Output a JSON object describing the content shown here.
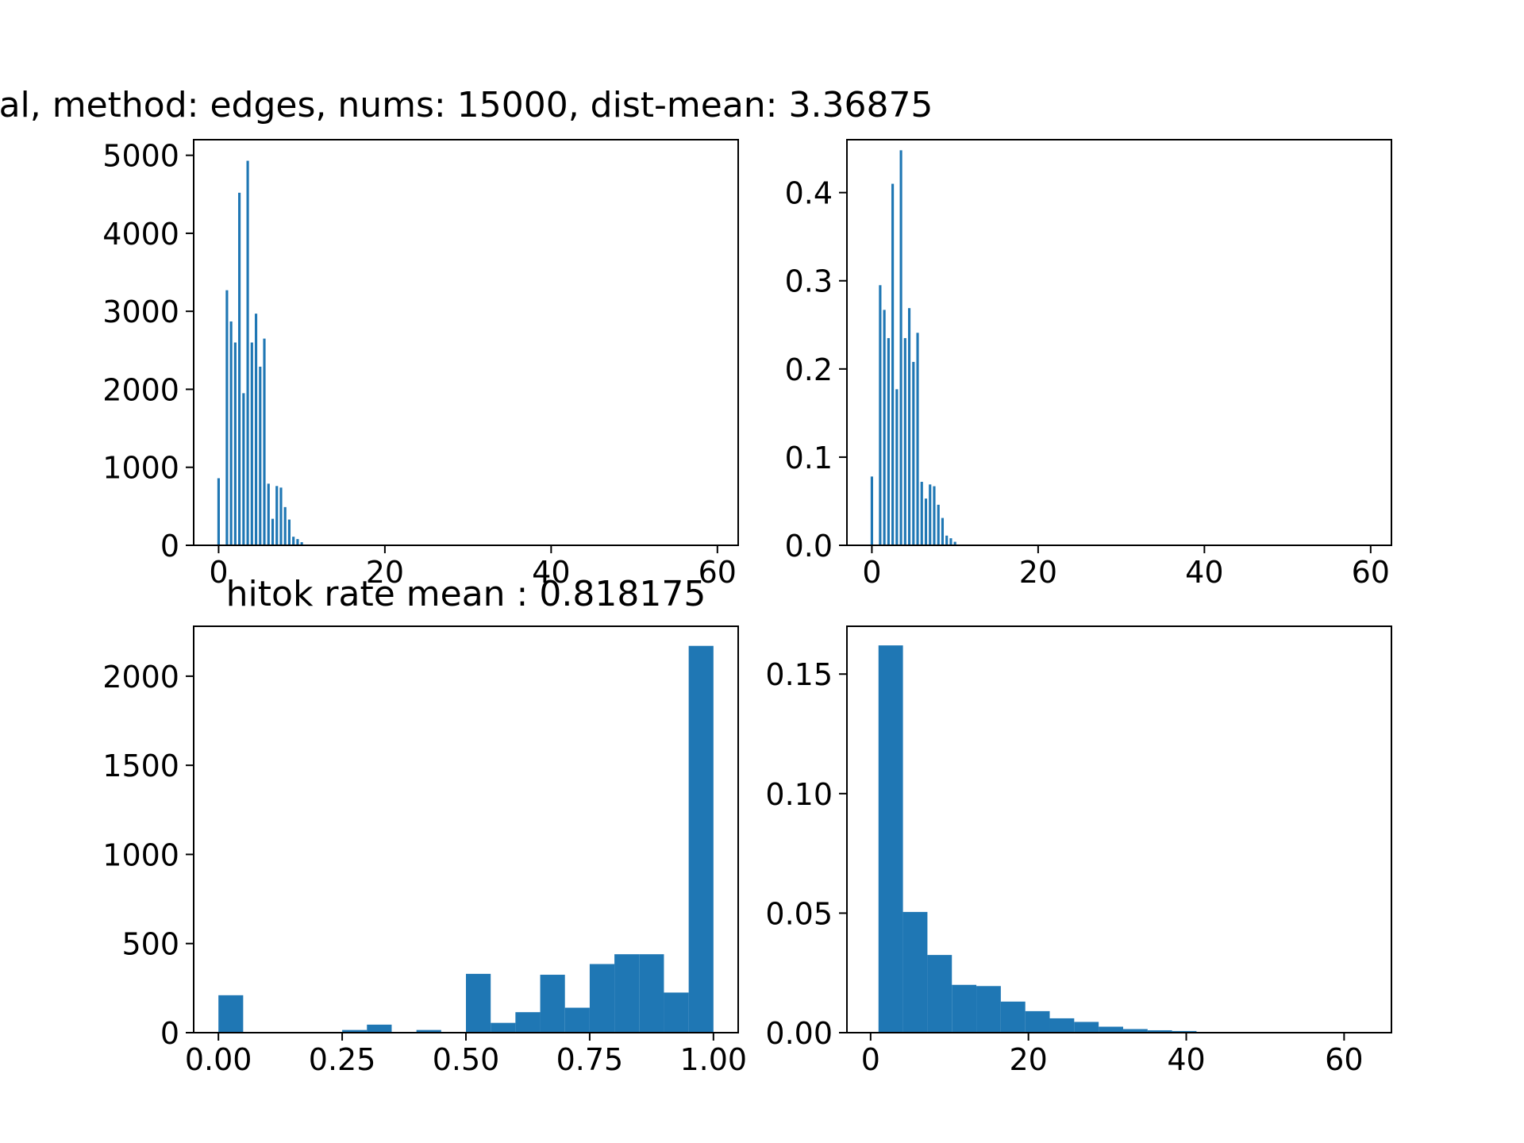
{
  "figure": {
    "bar_color": "#1f77b4",
    "background": "#ffffff"
  },
  "chart_data": [
    {
      "type": "bar",
      "title": "al, method: edges, nums: 15000, dist-mean: 3.36875",
      "xlabel": "",
      "ylabel": "",
      "xlim": [
        -3,
        62.5
      ],
      "ylim": [
        0,
        5200
      ],
      "xticks": [
        0,
        20,
        40,
        60
      ],
      "xtick_labels": [
        "0",
        "20",
        "40",
        "60"
      ],
      "yticks": [
        0,
        1000,
        2000,
        3000,
        4000,
        5000
      ],
      "ytick_labels": [
        "0",
        "1000",
        "2000",
        "3000",
        "4000",
        "5000"
      ],
      "bin_width": 0.3,
      "x": [
        0,
        1,
        1.5,
        2,
        2.5,
        3,
        3.5,
        4,
        4.5,
        5,
        5.5,
        6,
        6.5,
        7,
        7.5,
        8,
        8.5,
        9,
        9.5,
        10
      ],
      "values": [
        860,
        3270,
        2870,
        2600,
        4520,
        1950,
        4930,
        2600,
        2970,
        2290,
        2650,
        790,
        340,
        760,
        740,
        490,
        330,
        110,
        80,
        40
      ]
    },
    {
      "type": "bar",
      "title": "",
      "xlabel": "",
      "ylabel": "",
      "xlim": [
        -3,
        62.5
      ],
      "ylim": [
        0,
        0.46
      ],
      "xticks": [
        0,
        20,
        40,
        60
      ],
      "xtick_labels": [
        "0",
        "20",
        "40",
        "60"
      ],
      "yticks": [
        0,
        0.1,
        0.2,
        0.3,
        0.4
      ],
      "ytick_labels": [
        "0.0",
        "0.1",
        "0.2",
        "0.3",
        "0.4"
      ],
      "bin_width": 0.3,
      "x": [
        0,
        1,
        1.5,
        2,
        2.5,
        3,
        3.5,
        4,
        4.5,
        5,
        5.5,
        6,
        6.5,
        7,
        7.5,
        8,
        8.5,
        9,
        9.5,
        10
      ],
      "values": [
        0.078,
        0.295,
        0.267,
        0.235,
        0.41,
        0.177,
        0.448,
        0.235,
        0.269,
        0.208,
        0.241,
        0.072,
        0.053,
        0.069,
        0.067,
        0.046,
        0.031,
        0.011,
        0.008,
        0.004
      ]
    },
    {
      "type": "bar",
      "title": "hitok rate mean : 0.818175",
      "xlabel": "",
      "ylabel": "",
      "xlim": [
        -0.05,
        1.05
      ],
      "ylim": [
        0,
        2280
      ],
      "xticks": [
        0,
        0.25,
        0.5,
        0.75,
        1.0
      ],
      "xtick_labels": [
        "0.00",
        "0.25",
        "0.50",
        "0.75",
        "1.00"
      ],
      "yticks": [
        0,
        500,
        1000,
        1500,
        2000
      ],
      "ytick_labels": [
        "0",
        "500",
        "1000",
        "1500",
        "2000"
      ],
      "bin_edges": [
        0,
        0.05,
        0.1,
        0.15,
        0.2,
        0.25,
        0.3,
        0.35,
        0.4,
        0.45,
        0.5,
        0.55,
        0.6,
        0.65,
        0.7,
        0.75,
        0.8,
        0.85,
        0.9,
        0.95,
        1.0
      ],
      "values": [
        210,
        0,
        0,
        0,
        0,
        15,
        45,
        0,
        15,
        0,
        330,
        55,
        115,
        325,
        140,
        385,
        440,
        440,
        225,
        2170
      ]
    },
    {
      "type": "bar",
      "title": "",
      "xlabel": "",
      "ylabel": "",
      "xlim": [
        -3,
        66
      ],
      "ylim": [
        0,
        0.17
      ],
      "xticks": [
        0,
        20,
        40,
        60
      ],
      "xtick_labels": [
        "0",
        "20",
        "40",
        "60"
      ],
      "yticks": [
        0,
        0.05,
        0.1,
        0.15
      ],
      "ytick_labels": [
        "0.00",
        "0.05",
        "0.10",
        "0.15"
      ],
      "bin_edges": [
        1,
        4.1,
        7.2,
        10.3,
        13.4,
        16.5,
        19.6,
        22.7,
        25.8,
        28.9,
        32.0,
        35.1,
        38.2,
        41.3,
        44.4,
        47.5,
        50.6,
        53.7,
        56.8,
        59.9,
        63.0
      ],
      "values": [
        0.162,
        0.0505,
        0.0325,
        0.02,
        0.0195,
        0.013,
        0.009,
        0.006,
        0.0045,
        0.0025,
        0.0015,
        0.001,
        0.0007,
        0.0003,
        0.0002,
        0.0001,
        5e-05,
        3e-05,
        2e-05,
        1e-05
      ]
    }
  ]
}
